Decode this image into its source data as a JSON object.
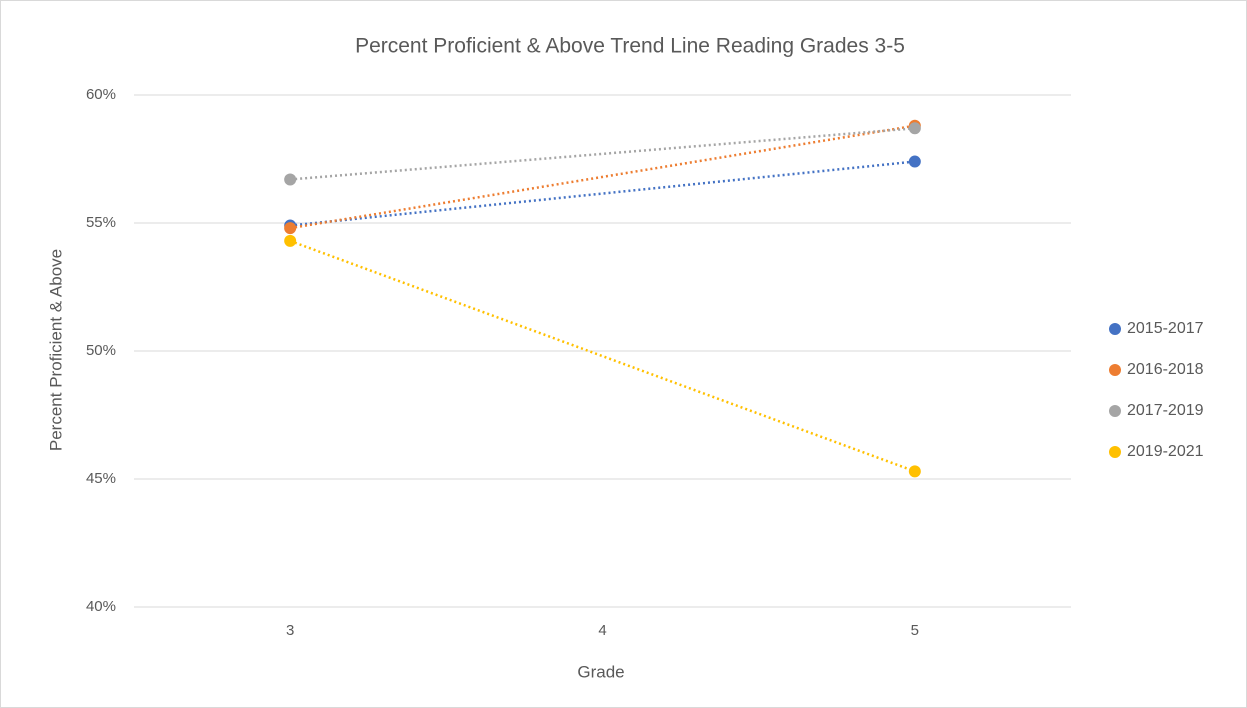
{
  "chart_data": {
    "type": "line",
    "title": "Percent Proficient & Above Trend Line Reading Grades 3-5",
    "x_label": "Grade",
    "y_label": "Percent Proficient & Above",
    "x": [
      3,
      5
    ],
    "xlim": [
      2.5,
      5.5
    ],
    "xticks": [
      3,
      4,
      5
    ],
    "ylim": [
      40,
      60
    ],
    "yticks": [
      {
        "value": 40,
        "label": "40%"
      },
      {
        "value": 45,
        "label": "45%"
      },
      {
        "value": 50,
        "label": "50%"
      },
      {
        "value": 55,
        "label": "55%"
      },
      {
        "value": 60,
        "label": "60%"
      }
    ],
    "grid": true,
    "line_style": "dotted",
    "legend": "right",
    "series": [
      {
        "name": "2015-2017",
        "color": "#4472c4",
        "values": [
          54.9,
          57.4
        ]
      },
      {
        "name": "2016-2018",
        "color": "#ed7d31",
        "values": [
          54.8,
          58.8
        ]
      },
      {
        "name": "2017-2019",
        "color": "#a5a5a5",
        "values": [
          56.7,
          58.7
        ]
      },
      {
        "name": "2019-2021",
        "color": "#ffc000",
        "values": [
          54.3,
          45.3
        ]
      }
    ]
  }
}
